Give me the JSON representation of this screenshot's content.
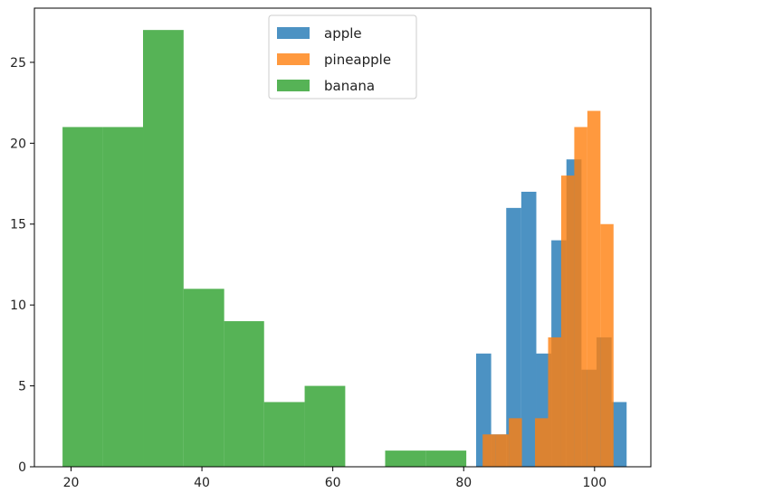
{
  "chart_data": {
    "type": "bar",
    "subtype": "histogram-overlay",
    "title": "",
    "xlabel": "",
    "ylabel": "",
    "xlim": [
      14.4,
      108.6
    ],
    "ylim": [
      0,
      28.35
    ],
    "xticks": [
      20,
      40,
      60,
      80,
      100
    ],
    "yticks": [
      0,
      5,
      10,
      15,
      20,
      25
    ],
    "grid": false,
    "legend_position": "top-center",
    "bar_alpha": 0.8,
    "series": [
      {
        "name": "banana",
        "color": "#2ca02c",
        "bin_edges": [
          18.7,
          24.9,
          31.0,
          37.2,
          43.4,
          49.5,
          55.7,
          61.9,
          68.0,
          74.2,
          80.4
        ],
        "counts": [
          21,
          21,
          27,
          11,
          9,
          4,
          5,
          0,
          1,
          1
        ]
      },
      {
        "name": "apple",
        "color": "#1f77b4",
        "bin_edges": [
          81.9,
          84.2,
          86.5,
          88.8,
          91.1,
          93.4,
          95.7,
          98.0,
          100.3,
          102.6,
          104.9
        ],
        "counts": [
          7,
          2,
          16,
          17,
          7,
          14,
          19,
          6,
          8,
          4
        ]
      },
      {
        "name": "pineapple",
        "color": "#ff7f0e",
        "bin_edges": [
          82.9,
          84.9,
          86.9,
          88.9,
          90.9,
          92.9,
          94.9,
          96.9,
          98.9,
          100.9,
          102.9
        ],
        "counts": [
          2,
          2,
          3,
          0,
          3,
          8,
          18,
          21,
          22,
          15
        ]
      }
    ],
    "legend": [
      "apple",
      "pineapple",
      "banana"
    ]
  }
}
